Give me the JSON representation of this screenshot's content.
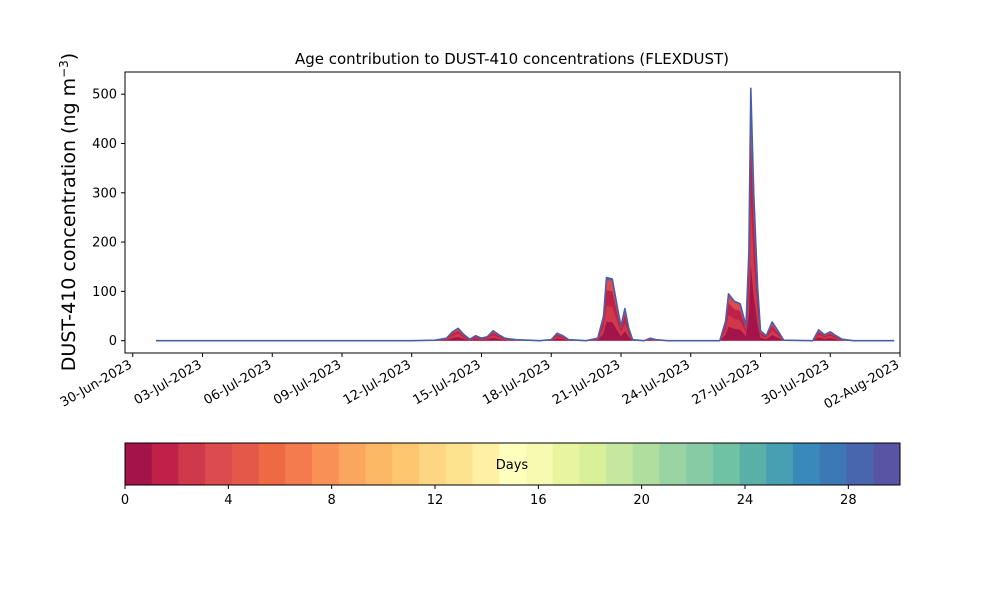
{
  "chart_data": [
    {
      "type": "area",
      "title": "Age contribution to DUST-410 concentrations (FLEXDUST)",
      "xlabel": "",
      "ylabel": "DUST-410 concentration (ng m",
      "ylabel_sup": "−3",
      "ylabel_close": ")",
      "ylim": [
        -25,
        545
      ],
      "yticks": [
        0,
        100,
        200,
        300,
        400,
        500
      ],
      "xlim": [
        "2023-06-29T16:00",
        "2023-08-02T00:00"
      ],
      "xticks": [
        "2023-06-30",
        "2023-07-03",
        "2023-07-06",
        "2023-07-09",
        "2023-07-12",
        "2023-07-15",
        "2023-07-18",
        "2023-07-21",
        "2023-07-24",
        "2023-07-27",
        "2023-07-30",
        "2023-08-02"
      ],
      "xtick_labels": [
        "30-Jun-2023",
        "03-Jul-2023",
        "06-Jul-2023",
        "09-Jul-2023",
        "12-Jul-2023",
        "15-Jul-2023",
        "18-Jul-2023",
        "21-Jul-2023",
        "24-Jul-2023",
        "27-Jul-2023",
        "30-Jul-2023",
        "02-Aug-2023"
      ],
      "grid": false,
      "total": [
        [
          "2023-07-01T00:00",
          0
        ],
        [
          "2023-07-12T00:00",
          0
        ],
        [
          "2023-07-13T00:00",
          1
        ],
        [
          "2023-07-13T12:00",
          5
        ],
        [
          "2023-07-13T18:00",
          18
        ],
        [
          "2023-07-14T00:00",
          25
        ],
        [
          "2023-07-14T06:00",
          12
        ],
        [
          "2023-07-14T12:00",
          3
        ],
        [
          "2023-07-14T18:00",
          10
        ],
        [
          "2023-07-15T00:00",
          5
        ],
        [
          "2023-07-15T06:00",
          8
        ],
        [
          "2023-07-15T12:00",
          20
        ],
        [
          "2023-07-15T18:00",
          12
        ],
        [
          "2023-07-16T00:00",
          5
        ],
        [
          "2023-07-16T12:00",
          2
        ],
        [
          "2023-07-17T00:00",
          1
        ],
        [
          "2023-07-17T12:00",
          0
        ],
        [
          "2023-07-18T00:00",
          2
        ],
        [
          "2023-07-18T06:00",
          15
        ],
        [
          "2023-07-18T12:00",
          10
        ],
        [
          "2023-07-18T18:00",
          2
        ],
        [
          "2023-07-19T12:00",
          0
        ],
        [
          "2023-07-20T00:00",
          5
        ],
        [
          "2023-07-20T06:00",
          50
        ],
        [
          "2023-07-20T09:00",
          128
        ],
        [
          "2023-07-20T15:00",
          125
        ],
        [
          "2023-07-20T21:00",
          60
        ],
        [
          "2023-07-21T00:00",
          30
        ],
        [
          "2023-07-21T04:00",
          65
        ],
        [
          "2023-07-21T08:00",
          25
        ],
        [
          "2023-07-21T12:00",
          2
        ],
        [
          "2023-07-22T00:00",
          0
        ],
        [
          "2023-07-22T06:00",
          5
        ],
        [
          "2023-07-22T12:00",
          2
        ],
        [
          "2023-07-23T00:00",
          0
        ],
        [
          "2023-07-25T06:00",
          0
        ],
        [
          "2023-07-25T12:00",
          40
        ],
        [
          "2023-07-25T15:00",
          95
        ],
        [
          "2023-07-25T21:00",
          80
        ],
        [
          "2023-07-26T03:00",
          75
        ],
        [
          "2023-07-26T09:00",
          30
        ],
        [
          "2023-07-26T12:00",
          180
        ],
        [
          "2023-07-26T14:00",
          512
        ],
        [
          "2023-07-26T17:00",
          300
        ],
        [
          "2023-07-26T21:00",
          110
        ],
        [
          "2023-07-27T00:00",
          20
        ],
        [
          "2023-07-27T06:00",
          10
        ],
        [
          "2023-07-27T12:00",
          38
        ],
        [
          "2023-07-27T18:00",
          20
        ],
        [
          "2023-07-28T00:00",
          1
        ],
        [
          "2023-07-29T06:00",
          0
        ],
        [
          "2023-07-29T12:00",
          22
        ],
        [
          "2023-07-29T18:00",
          12
        ],
        [
          "2023-07-30T00:00",
          18
        ],
        [
          "2023-07-30T06:00",
          10
        ],
        [
          "2023-07-30T12:00",
          3
        ],
        [
          "2023-07-31T00:00",
          0
        ],
        [
          "2023-08-01T18:00",
          0
        ]
      ],
      "line_color": "#4a5fa8"
    },
    {
      "type": "colorbar",
      "label": "Days",
      "range": [
        0,
        30
      ],
      "ticks": [
        0,
        4,
        8,
        12,
        16,
        20,
        24,
        28
      ],
      "colors": [
        "#a3154a",
        "#bf2148",
        "#d0384c",
        "#dc4b4d",
        "#e4584a",
        "#ef6945",
        "#f47b4d",
        "#f99157",
        "#fba65f",
        "#fdb866",
        "#fec66e",
        "#fed581",
        "#fee38f",
        "#fff0a3",
        "#ffffbe",
        "#f7fbb2",
        "#e8f59e",
        "#d8f09a",
        "#c5e79f",
        "#b0de9f",
        "#9bd4a3",
        "#86cba4",
        "#70c2a5",
        "#5aafa8",
        "#479fb2",
        "#3a89bb",
        "#3b78b5",
        "#4766ae",
        "#5955a5"
      ]
    }
  ]
}
